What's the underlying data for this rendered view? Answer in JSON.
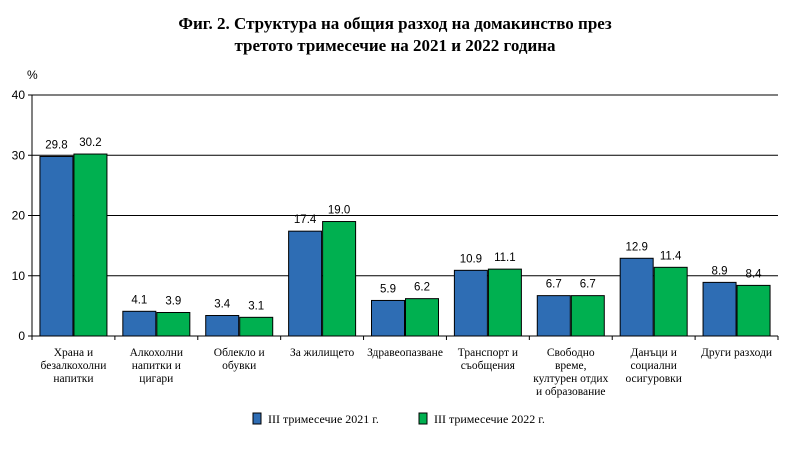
{
  "chart_data": {
    "type": "bar",
    "title_line1": "Фиг. 2. Структура на общия разход на домакинство през",
    "title_line2": "третото тримесечие на 2021 и 2022 година",
    "ylabel": "%",
    "ylim": [
      0,
      40
    ],
    "yticks": [
      "0",
      "10",
      "20",
      "30",
      "40"
    ],
    "grid": true,
    "legend_position": "bottom",
    "categories": [
      [
        "Храна и",
        "безалкохолни",
        "напитки"
      ],
      [
        "Алкохолни",
        "напитки и",
        "цигари"
      ],
      [
        "Облекло и",
        "обувки"
      ],
      [
        "За жилището"
      ],
      [
        "Здравеопазване"
      ],
      [
        "Транспорт и",
        "съобщения"
      ],
      [
        "Свободно",
        "време,",
        "културен отдих",
        "и образование"
      ],
      [
        "Данъци и",
        "социални",
        "осигуровки"
      ],
      [
        "Други разходи"
      ]
    ],
    "series": [
      {
        "name": "III тримесечие 2021 г.",
        "color": "#2e6db4",
        "values": [
          29.8,
          4.1,
          3.4,
          17.4,
          5.9,
          10.9,
          6.7,
          12.9,
          8.9
        ],
        "labels": [
          "29.8",
          "4.1",
          "3.4",
          "17.4",
          "5.9",
          "10.9",
          "6.7",
          "12.9",
          "8.9"
        ]
      },
      {
        "name": "III тримесечие 2022 г.",
        "color": "#00b050",
        "values": [
          30.2,
          3.9,
          3.1,
          19.0,
          6.2,
          11.1,
          6.7,
          11.4,
          8.4
        ],
        "labels": [
          "30.2",
          "3.9",
          "3.1",
          "19.0",
          "6.2",
          "11.1",
          "6.7",
          "11.4",
          "8.4"
        ]
      }
    ]
  }
}
